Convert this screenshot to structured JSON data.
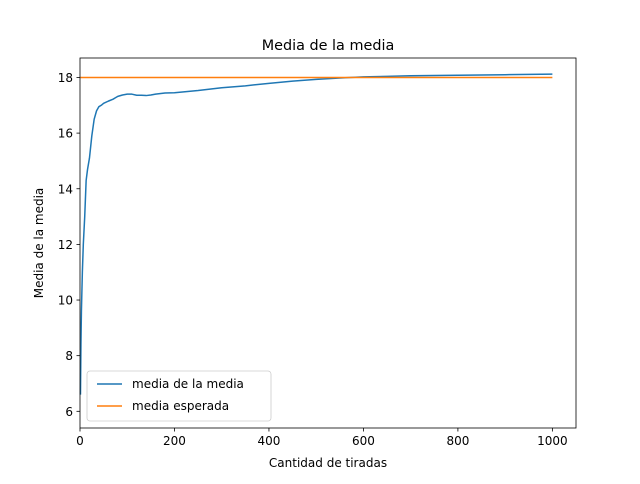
{
  "chart_data": {
    "type": "line",
    "title": "Media de la media",
    "xlabel": "Cantidad de tiradas",
    "ylabel": "Media de la media",
    "xlim": [
      0,
      1050
    ],
    "ylim": [
      5.4,
      18.7
    ],
    "xticks": [
      0,
      200,
      400,
      600,
      800,
      1000
    ],
    "yticks": [
      6,
      8,
      10,
      12,
      14,
      16,
      18
    ],
    "grid": false,
    "legend_position": "lower-left",
    "series": [
      {
        "name": "media de la media",
        "color": "#1f77b4",
        "x": [
          1,
          2,
          3,
          5,
          7,
          10,
          13,
          16,
          20,
          25,
          30,
          35,
          40,
          45,
          50,
          60,
          70,
          75,
          80,
          90,
          100,
          110,
          120,
          130,
          140,
          150,
          160,
          180,
          200,
          250,
          300,
          350,
          400,
          450,
          500,
          550,
          600,
          650,
          700,
          800,
          900,
          1000
        ],
        "y": [
          6.6,
          8.4,
          9.6,
          11.0,
          12.0,
          13.0,
          14.3,
          14.7,
          15.1,
          15.9,
          16.5,
          16.8,
          16.95,
          17.0,
          17.07,
          17.15,
          17.22,
          17.27,
          17.32,
          17.37,
          17.4,
          17.4,
          17.36,
          17.36,
          17.35,
          17.37,
          17.4,
          17.44,
          17.45,
          17.53,
          17.63,
          17.7,
          17.79,
          17.87,
          17.93,
          17.98,
          18.02,
          18.04,
          18.06,
          18.08,
          18.1,
          18.12
        ]
      },
      {
        "name": "media esperada",
        "color": "#ff7f0e",
        "x": [
          1,
          1000
        ],
        "y": [
          18,
          18
        ]
      }
    ]
  }
}
